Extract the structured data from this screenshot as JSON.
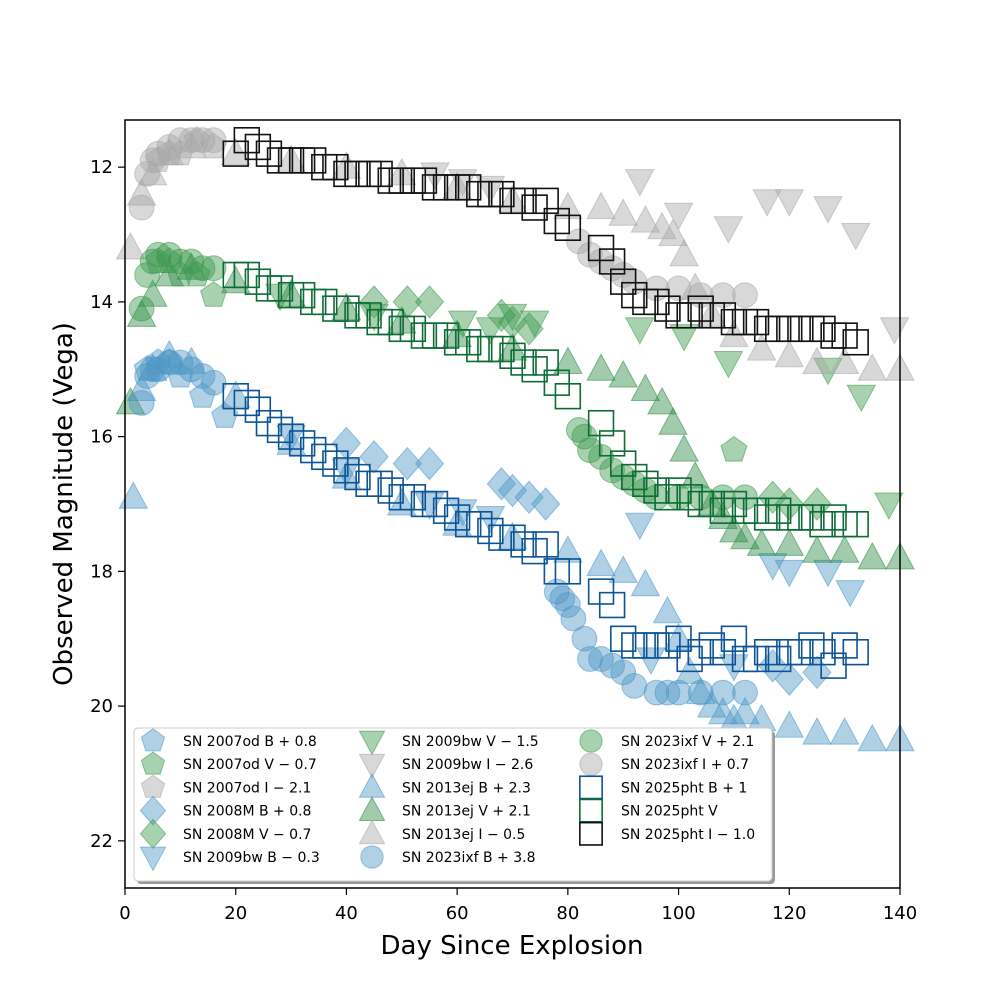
{
  "chart_data": {
    "type": "scatter",
    "title": "",
    "xlabel": "Day Since Explosion",
    "ylabel": "Observed Magnitude (Vega)",
    "xlim": [
      0,
      140
    ],
    "ylim": [
      22.7,
      11.3
    ],
    "y_inverted": true,
    "xticks": [
      0,
      20,
      40,
      60,
      80,
      100,
      120,
      140
    ],
    "yticks": [
      12,
      14,
      16,
      18,
      20,
      22
    ],
    "grid": false,
    "legend_location": "lower-left",
    "legend_columns": 3,
    "series": [
      {
        "name": "SN 2007od B + 0.8",
        "marker": "pentagon",
        "color": "#4f97c6",
        "filled": true,
        "x": [
          4,
          6,
          8,
          10,
          14,
          18
        ],
        "y": [
          15.0,
          14.9,
          14.9,
          15.1,
          15.4,
          15.7
        ]
      },
      {
        "name": "SN 2007od V − 0.7",
        "marker": "pentagon",
        "color": "#3f9a4f",
        "filled": true,
        "x": [
          6,
          8,
          10,
          13,
          16,
          110
        ],
        "y": [
          13.4,
          13.4,
          13.6,
          13.6,
          13.9,
          16.2
        ]
      },
      {
        "name": "SN 2007od I − 2.1",
        "marker": "pentagon",
        "color": "#a8a8a8",
        "filled": true,
        "x": [
          6,
          8,
          10,
          13,
          16
        ],
        "y": [
          11.9,
          11.8,
          11.8,
          11.6,
          11.7
        ]
      },
      {
        "name": "SN 2008M B + 0.8",
        "marker": "diamond",
        "color": "#4f97c6",
        "filled": true,
        "x": [
          40,
          45,
          51,
          55,
          68,
          70,
          73,
          76,
          117,
          120,
          125
        ],
        "y": [
          16.1,
          16.3,
          16.4,
          16.4,
          16.7,
          16.8,
          16.9,
          17.0,
          19.4,
          19.6,
          19.5
        ]
      },
      {
        "name": "SN 2008M V − 0.7",
        "marker": "diamond",
        "color": "#3f9a4f",
        "filled": true,
        "x": [
          45,
          51,
          55,
          68,
          70,
          73,
          117,
          120,
          125
        ],
        "y": [
          14.0,
          14.0,
          14.0,
          14.2,
          14.3,
          14.4,
          16.9,
          17.0,
          17.0
        ]
      },
      {
        "name": "SN 2009bw B − 0.3",
        "marker": "triangle-down",
        "color": "#4f97c6",
        "filled": true,
        "x": [
          30,
          40,
          55,
          61,
          66,
          93,
          95,
          110,
          117,
          120,
          127,
          131
        ],
        "y": [
          16.0,
          16.5,
          17.0,
          17.1,
          17.2,
          17.3,
          19.3,
          19.4,
          17.9,
          18.0,
          18.0,
          18.3
        ]
      },
      {
        "name": "SN 2009bw V − 1.5",
        "marker": "triangle-down",
        "color": "#3f9a4f",
        "filled": true,
        "x": [
          28,
          45,
          61,
          66,
          70,
          74,
          93,
          101,
          109,
          127,
          133,
          138
        ],
        "y": [
          13.9,
          14.2,
          14.3,
          14.4,
          14.2,
          14.3,
          14.4,
          14.5,
          14.9,
          15.0,
          15.4,
          17.0
        ]
      },
      {
        "name": "SN 2009bw I − 2.6",
        "marker": "triangle-down",
        "color": "#a8a8a8",
        "filled": true,
        "x": [
          56,
          61,
          66,
          93,
          100,
          109,
          116,
          120,
          127,
          132,
          139
        ],
        "y": [
          12.1,
          12.2,
          12.3,
          12.2,
          12.7,
          12.9,
          12.5,
          12.5,
          12.6,
          13.0,
          14.4
        ]
      },
      {
        "name": "SN 2013ej B + 2.3",
        "marker": "triangle-up",
        "color": "#4f97c6",
        "filled": true,
        "x": [
          1.5,
          3,
          5,
          8,
          12,
          20,
          30,
          40,
          50,
          60,
          70,
          80,
          86,
          90,
          94,
          98,
          100,
          102,
          104,
          106,
          108,
          110,
          112,
          115,
          120,
          125,
          130,
          135,
          140
        ],
        "y": [
          16.9,
          15.3,
          15.0,
          14.8,
          14.9,
          15.4,
          16.1,
          16.6,
          17.0,
          17.3,
          17.5,
          17.7,
          17.9,
          18.0,
          18.2,
          18.6,
          19.0,
          19.5,
          19.8,
          20.0,
          20.1,
          20.2,
          20.1,
          20.2,
          20.3,
          20.4,
          20.4,
          20.5,
          20.5
        ]
      },
      {
        "name": "SN 2013ej V + 2.1",
        "marker": "triangle-up",
        "color": "#2e8b47",
        "filled": true,
        "x": [
          1,
          3,
          5,
          8,
          12,
          20,
          30,
          40,
          50,
          60,
          70,
          80,
          86,
          90,
          94,
          97,
          99,
          101,
          103,
          106,
          108,
          110,
          112,
          115,
          120,
          125,
          130,
          135,
          140
        ],
        "y": [
          15.5,
          14.2,
          13.9,
          13.6,
          13.5,
          13.7,
          13.9,
          14.1,
          14.3,
          14.5,
          14.7,
          14.9,
          15.0,
          15.1,
          15.3,
          15.5,
          15.8,
          16.2,
          16.6,
          17.0,
          17.2,
          17.4,
          17.5,
          17.6,
          17.6,
          17.7,
          17.7,
          17.8,
          17.8
        ]
      },
      {
        "name": "SN 2013ej I − 0.5",
        "marker": "triangle-up",
        "color": "#a8a8a8",
        "filled": true,
        "x": [
          1,
          3,
          5,
          8,
          12,
          20,
          30,
          40,
          50,
          60,
          70,
          80,
          86,
          90,
          94,
          97,
          99,
          101,
          103,
          106,
          110,
          115,
          120,
          125,
          130,
          135,
          140
        ],
        "y": [
          13.2,
          12.4,
          12.1,
          11.8,
          11.7,
          11.8,
          11.9,
          12.0,
          12.1,
          12.3,
          12.5,
          12.6,
          12.6,
          12.7,
          12.8,
          12.9,
          13.0,
          13.3,
          13.8,
          14.2,
          14.5,
          14.7,
          14.8,
          14.9,
          14.9,
          15.0,
          15.0
        ]
      },
      {
        "name": "SN 2023ixf B + 3.8",
        "marker": "circle",
        "color": "#4f97c6",
        "filled": true,
        "x": [
          3,
          4,
          5,
          6,
          8,
          10,
          12,
          14,
          16,
          78,
          79,
          80,
          81,
          83,
          84,
          86,
          88,
          90,
          92,
          96,
          98,
          100,
          104,
          108,
          112
        ],
        "y": [
          15.5,
          15.1,
          15.0,
          15.0,
          14.9,
          14.9,
          15.0,
          15.1,
          15.2,
          18.3,
          18.4,
          18.5,
          18.7,
          19.0,
          19.3,
          19.3,
          19.4,
          19.5,
          19.7,
          19.8,
          19.8,
          19.8,
          19.8,
          19.8,
          19.8
        ]
      },
      {
        "name": "SN 2023ixf V + 2.1",
        "marker": "circle",
        "color": "#3f9a4f",
        "filled": true,
        "x": [
          3,
          4,
          5,
          6,
          8,
          10,
          12,
          14,
          16,
          82,
          83,
          84,
          86,
          88,
          90,
          92,
          94,
          96,
          100,
          104,
          108,
          112
        ],
        "y": [
          14.1,
          13.6,
          13.4,
          13.3,
          13.3,
          13.4,
          13.4,
          13.5,
          13.5,
          15.9,
          16.0,
          16.2,
          16.3,
          16.5,
          16.6,
          16.7,
          16.8,
          16.9,
          16.9,
          16.9,
          16.9,
          16.9
        ]
      },
      {
        "name": "SN 2023ixf I + 0.7",
        "marker": "circle",
        "color": "#a8a8a8",
        "filled": true,
        "x": [
          3,
          4,
          5,
          6,
          8,
          10,
          12,
          14,
          16,
          82,
          84,
          86,
          88,
          90,
          92,
          96,
          100,
          104,
          108,
          112
        ],
        "y": [
          12.6,
          12.1,
          11.9,
          11.8,
          11.7,
          11.6,
          11.6,
          11.6,
          11.6,
          13.1,
          13.3,
          13.4,
          13.5,
          13.6,
          13.7,
          13.8,
          13.8,
          13.9,
          13.9,
          13.9
        ]
      },
      {
        "name": "SN 2025pht B + 1",
        "marker": "square",
        "color": "#0b5394",
        "filled": false,
        "x": [
          20,
          22,
          24,
          26,
          28,
          30,
          32,
          34,
          36,
          38,
          40,
          42,
          44,
          46,
          48,
          50,
          52,
          54,
          56,
          58,
          60,
          62,
          64,
          66,
          68,
          70,
          72,
          74,
          76,
          78,
          80,
          86,
          88,
          90,
          92,
          94,
          96,
          98,
          100,
          102,
          104,
          106,
          108,
          110,
          112,
          114,
          116,
          118,
          120,
          122,
          124,
          126,
          128,
          130,
          132
        ],
        "y": [
          15.4,
          15.5,
          15.6,
          15.8,
          15.9,
          16.0,
          16.1,
          16.2,
          16.3,
          16.4,
          16.5,
          16.6,
          16.7,
          16.7,
          16.8,
          16.9,
          16.9,
          17.0,
          17.0,
          17.1,
          17.2,
          17.3,
          17.3,
          17.4,
          17.5,
          17.5,
          17.6,
          17.7,
          17.6,
          18.0,
          18.0,
          18.3,
          18.5,
          19.0,
          19.1,
          19.1,
          19.1,
          19.1,
          19.0,
          19.3,
          19.2,
          19.1,
          19.2,
          19.0,
          19.3,
          19.3,
          19.2,
          19.3,
          19.2,
          19.2,
          19.1,
          19.2,
          19.4,
          19.1,
          19.2
        ]
      },
      {
        "name": "SN 2025pht V",
        "marker": "square",
        "color": "#0d6b36",
        "filled": false,
        "x": [
          20,
          22,
          24,
          26,
          28,
          30,
          32,
          34,
          36,
          38,
          40,
          42,
          44,
          46,
          48,
          50,
          52,
          54,
          56,
          58,
          60,
          62,
          64,
          66,
          68,
          70,
          72,
          74,
          76,
          78,
          80,
          86,
          88,
          90,
          92,
          94,
          96,
          98,
          100,
          102,
          104,
          106,
          108,
          110,
          112,
          114,
          116,
          118,
          120,
          122,
          124,
          126,
          128,
          130,
          132
        ],
        "y": [
          13.6,
          13.6,
          13.7,
          13.8,
          13.8,
          13.9,
          13.9,
          14.0,
          14.0,
          14.1,
          14.1,
          14.2,
          14.2,
          14.3,
          14.3,
          14.4,
          14.4,
          14.5,
          14.5,
          14.5,
          14.6,
          14.6,
          14.7,
          14.7,
          14.7,
          14.8,
          14.9,
          15.0,
          14.9,
          15.2,
          15.4,
          15.8,
          16.1,
          16.4,
          16.6,
          16.7,
          16.8,
          16.9,
          16.8,
          16.9,
          17.0,
          17.0,
          17.1,
          17.0,
          17.1,
          17.1,
          17.2,
          17.1,
          17.2,
          17.2,
          17.2,
          17.3,
          17.2,
          17.3,
          17.3
        ]
      },
      {
        "name": "SN 2025pht I − 1.0",
        "marker": "square",
        "color": "#111111",
        "filled": false,
        "x": [
          20,
          22,
          24,
          26,
          28,
          30,
          32,
          34,
          36,
          38,
          40,
          42,
          44,
          46,
          48,
          50,
          52,
          54,
          56,
          58,
          60,
          62,
          64,
          66,
          68,
          70,
          72,
          74,
          76,
          78,
          80,
          86,
          88,
          90,
          92,
          94,
          96,
          98,
          100,
          102,
          104,
          106,
          108,
          110,
          112,
          114,
          116,
          118,
          120,
          122,
          124,
          126,
          128,
          130,
          132
        ],
        "y": [
          11.8,
          11.6,
          11.7,
          11.8,
          11.9,
          11.9,
          11.9,
          11.9,
          12.0,
          12.0,
          12.1,
          12.1,
          12.1,
          12.1,
          12.2,
          12.2,
          12.2,
          12.2,
          12.3,
          12.3,
          12.3,
          12.3,
          12.4,
          12.4,
          12.4,
          12.5,
          12.5,
          12.6,
          12.5,
          12.8,
          12.9,
          13.2,
          13.4,
          13.7,
          13.9,
          14.0,
          14.0,
          14.1,
          14.2,
          14.2,
          14.1,
          14.2,
          14.2,
          14.3,
          14.3,
          14.3,
          14.4,
          14.4,
          14.4,
          14.4,
          14.4,
          14.4,
          14.5,
          14.5,
          14.6
        ]
      }
    ]
  }
}
